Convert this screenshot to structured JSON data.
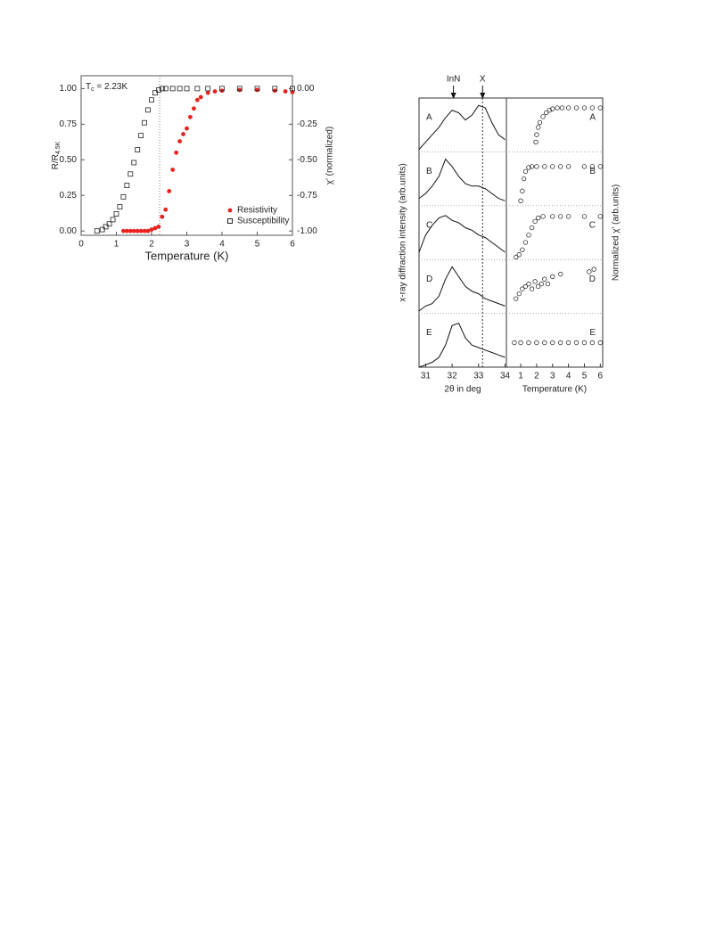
{
  "chart_data": [
    {
      "type": "scatter",
      "annotation": {
        "label": "T",
        "sub": "c",
        "text": " = 2.23K"
      },
      "vline": 2.23,
      "xlabel": "Temperature (K)",
      "ylabel": {
        "label": "R/R",
        "sub": "4.5K"
      },
      "y2label": "χ' (normalized)",
      "xlim": [
        0,
        6
      ],
      "xticks": [
        0,
        1,
        2,
        3,
        4,
        5,
        6
      ],
      "ylim": [
        -0.03,
        1.09
      ],
      "yticks": [
        {
          "value": 0,
          "label": "0.00"
        },
        {
          "value": 0.25,
          "label": "0.25"
        },
        {
          "value": 0.5,
          "label": "0.50"
        },
        {
          "value": 0.75,
          "label": "0.75"
        },
        {
          "value": 1,
          "label": "1.00"
        }
      ],
      "y2lim": [
        -1.03,
        0.09
      ],
      "y2ticks": [
        {
          "value": -1,
          "label": "-1.00"
        },
        {
          "value": -0.75,
          "label": "-0.75"
        },
        {
          "value": -0.5,
          "label": "-0.50"
        },
        {
          "value": -0.25,
          "label": "-0.25"
        },
        {
          "value": 0,
          "label": "0.00"
        }
      ],
      "legend": "lower right",
      "series": [
        {
          "name": "Resistivity",
          "color": "#e8231f",
          "marker": "filled-circle",
          "x": [
            1.2,
            1.3,
            1.4,
            1.5,
            1.6,
            1.7,
            1.8,
            1.9,
            2.0,
            2.1,
            2.2,
            2.3,
            2.4,
            2.5,
            2.6,
            2.7,
            2.8,
            2.9,
            3.0,
            3.1,
            3.2,
            3.3,
            3.4,
            3.6,
            3.8,
            4.0,
            4.5,
            5.0,
            5.5,
            5.8,
            6.0
          ],
          "values": [
            0,
            0,
            0,
            0,
            0,
            0,
            0,
            0,
            0.01,
            0.02,
            0.03,
            0.1,
            0.15,
            0.28,
            0.43,
            0.55,
            0.63,
            0.68,
            0.72,
            0.8,
            0.86,
            0.92,
            0.94,
            0.97,
            0.98,
            0.985,
            0.99,
            0.99,
            0.985,
            0.98,
            0.975
          ]
        },
        {
          "name": "Susceptibility",
          "color": "#222222",
          "marker": "open-square",
          "axis": "y2",
          "x": [
            0.45,
            0.6,
            0.7,
            0.8,
            0.9,
            1.0,
            1.1,
            1.2,
            1.3,
            1.4,
            1.5,
            1.6,
            1.7,
            1.8,
            1.9,
            2.0,
            2.1,
            2.2,
            2.3,
            2.4,
            2.6,
            2.8,
            3.0,
            3.3,
            3.6,
            4.0,
            4.5,
            5.0,
            5.5,
            6.0
          ],
          "values": [
            -1.0,
            -0.99,
            -0.97,
            -0.95,
            -0.92,
            -0.88,
            -0.83,
            -0.76,
            -0.68,
            -0.6,
            -0.52,
            -0.43,
            -0.33,
            -0.24,
            -0.15,
            -0.08,
            -0.03,
            -0.01,
            0,
            0,
            0,
            0,
            0,
            0,
            0,
            0,
            0,
            0,
            0,
            0
          ]
        }
      ]
    },
    {
      "type": "line",
      "xlabel": "2θ in deg",
      "ylabel": "x-ray diffraction intensity (arb.units)",
      "xlim": [
        30.75,
        34.05
      ],
      "xticks": [
        31,
        32,
        33,
        34
      ],
      "ylim": [
        0,
        1.1
      ],
      "annotations": [
        {
          "text": "InN",
          "x": 32.05
        },
        {
          "text": "X",
          "x": 33.15
        }
      ],
      "x": [
        30.75,
        31,
        31.25,
        31.5,
        31.75,
        32,
        32.25,
        32.5,
        32.75,
        33,
        33.25,
        33.5,
        33.75,
        34
      ],
      "series": [
        {
          "name": "A",
          "color": "#111111",
          "values": [
            0.05,
            0.2,
            0.35,
            0.5,
            0.7,
            0.85,
            0.8,
            0.65,
            0.75,
            0.95,
            0.9,
            0.6,
            0.35,
            0.25
          ]
        },
        {
          "name": "B",
          "color": "#111111",
          "values": [
            0.15,
            0.25,
            0.4,
            0.6,
            0.95,
            0.8,
            0.6,
            0.45,
            0.4,
            0.4,
            0.35,
            0.25,
            0.15,
            0.1
          ]
        },
        {
          "name": "C",
          "color": "#111111",
          "values": [
            0.15,
            0.5,
            0.7,
            0.85,
            0.9,
            0.8,
            0.75,
            0.65,
            0.6,
            0.5,
            0.45,
            0.35,
            0.25,
            0.15
          ]
        },
        {
          "name": "D",
          "color": "#111111",
          "values": [
            0.05,
            0.15,
            0.2,
            0.35,
            0.7,
            0.95,
            0.75,
            0.55,
            0.45,
            0.4,
            0.3,
            0.25,
            0.2,
            0.15
          ]
        },
        {
          "name": "E",
          "color": "#111111",
          "values": [
            0.0,
            0.05,
            0.1,
            0.2,
            0.45,
            0.85,
            0.9,
            0.6,
            0.45,
            0.4,
            0.35,
            0.3,
            0.25,
            0.2
          ]
        }
      ]
    },
    {
      "type": "scatter",
      "xlabel": "Temperature (K)",
      "ylabel": "Normalized χ' (arb.units)",
      "xlim": [
        0.1,
        6.15
      ],
      "xticks": [
        1,
        2,
        3,
        4,
        5,
        6
      ],
      "ylim": [
        0,
        1.1
      ],
      "series": [
        {
          "name": "A",
          "color": "#111111",
          "x": [
            1.95,
            2.0,
            2.1,
            2.2,
            2.4,
            2.6,
            2.8,
            3.0,
            3.3,
            3.6,
            4.0,
            4.5,
            5.0,
            5.5,
            6.0
          ],
          "values": [
            0.2,
            0.35,
            0.5,
            0.6,
            0.72,
            0.8,
            0.85,
            0.88,
            0.9,
            0.9,
            0.9,
            0.9,
            0.9,
            0.9,
            0.9
          ]
        },
        {
          "name": "B",
          "color": "#111111",
          "x": [
            1.0,
            1.1,
            1.2,
            1.3,
            1.5,
            1.7,
            2.0,
            2.5,
            3.0,
            3.5,
            4.0,
            5.0,
            5.5,
            6.0
          ],
          "values": [
            0.1,
            0.3,
            0.55,
            0.7,
            0.78,
            0.8,
            0.8,
            0.8,
            0.8,
            0.8,
            0.8,
            0.8,
            0.8,
            0.8
          ]
        },
        {
          "name": "C",
          "color": "#111111",
          "x": [
            0.7,
            0.9,
            1.1,
            1.3,
            1.5,
            1.7,
            1.9,
            2.1,
            2.4,
            3.0,
            3.5,
            4.0,
            5.0,
            6.0
          ],
          "values": [
            0.05,
            0.1,
            0.2,
            0.35,
            0.5,
            0.65,
            0.78,
            0.85,
            0.88,
            0.88,
            0.88,
            0.88,
            0.88,
            0.88
          ]
        },
        {
          "name": "D",
          "color": "#111111",
          "x": [
            0.7,
            0.9,
            1.1,
            1.3,
            1.5,
            1.7,
            1.9,
            2.1,
            2.3,
            2.5,
            2.7,
            3.0,
            3.5,
            5.3,
            5.6
          ],
          "values": [
            0.3,
            0.4,
            0.5,
            0.55,
            0.6,
            0.5,
            0.65,
            0.55,
            0.6,
            0.7,
            0.6,
            0.75,
            0.8,
            0.85,
            0.9
          ]
        },
        {
          "name": "E",
          "color": "#111111",
          "x": [
            0.6,
            1.0,
            1.5,
            2.0,
            2.5,
            3.0,
            3.5,
            4.0,
            4.5,
            5.0,
            5.5,
            6.0
          ],
          "values": [
            0.5,
            0.5,
            0.5,
            0.5,
            0.5,
            0.5,
            0.5,
            0.5,
            0.5,
            0.5,
            0.5,
            0.5
          ]
        }
      ]
    }
  ]
}
